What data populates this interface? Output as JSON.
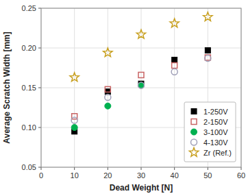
{
  "chart_data": {
    "type": "scatter",
    "xlabel": "Dead Weight [N]",
    "ylabel": "Average Scratch Width [mm]",
    "x": [
      10,
      20,
      30,
      40,
      50
    ],
    "series": [
      {
        "name": "1-250V",
        "color": "#000000",
        "marker": "square",
        "values": [
          0.095,
          0.145,
          0.155,
          0.185,
          0.197
        ]
      },
      {
        "name": "2-150V",
        "color": "#c86464",
        "marker": "square-open",
        "values": [
          0.114,
          0.148,
          0.166,
          0.178,
          0.188
        ]
      },
      {
        "name": "3-100V",
        "color": "#00b050",
        "marker": "circle",
        "values": [
          0.1,
          0.127,
          0.153,
          null,
          null
        ]
      },
      {
        "name": "4-130V",
        "color": "#a0a0b8",
        "marker": "circle-open",
        "values": [
          0.109,
          0.138,
          0.153,
          0.17,
          0.187
        ]
      },
      {
        "name": "Zr (Ref.)",
        "color": "#c8a020",
        "marker": "star-open",
        "values": [
          0.163,
          0.194,
          0.217,
          0.231,
          0.239
        ]
      }
    ],
    "xlim": [
      0,
      60
    ],
    "ylim": [
      0.05,
      0.25
    ],
    "xticks": [
      0,
      10,
      20,
      30,
      40,
      50,
      60
    ],
    "yticks": [
      0.05,
      {
        "value": 0.1,
        "label": "0.10"
      },
      0.15,
      {
        "value": 0.2,
        "label": "0.20"
      },
      0.25
    ],
    "grid": true,
    "legend": "lower right"
  }
}
